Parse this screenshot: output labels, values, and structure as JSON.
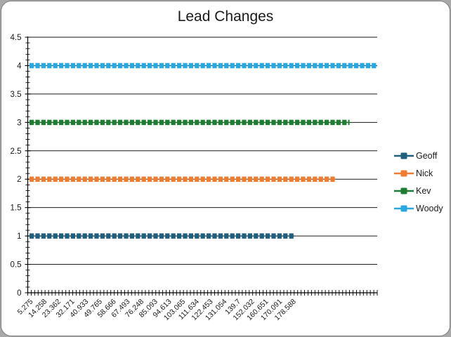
{
  "frame": {
    "page_background": "#a9a9a9",
    "chart_background": "#ffffff",
    "border_color": "#7f7f7f",
    "gridline_color": "#1a1a1a",
    "axis_color": "#000000",
    "text_color": "#1a1a1a"
  },
  "chart_data": {
    "type": "line",
    "title": "Lead Changes",
    "grid": true,
    "legend_position": "right",
    "y_axis": {
      "min": 0,
      "max": 4.5,
      "major_interval": 0.5,
      "minor_interval": 0.1,
      "tick_labels": [
        "0",
        "0.5",
        "1",
        "1.5",
        "2",
        "2.5",
        "3",
        "3.5",
        "4",
        "4.5"
      ]
    },
    "x_axis": {
      "tick_labels": [
        "5.275",
        "14.258",
        "23.362",
        "32.171",
        "40.933",
        "49.765",
        "58.666",
        "67.493",
        "76.248",
        "85.093",
        "94.613",
        "103.065",
        "111.634",
        "122.453",
        "131.054",
        "139.7",
        "152.032",
        "160.651",
        "170.091",
        "178.588"
      ],
      "minor_tick_count": 102,
      "label_every_n_ticks": 4,
      "first_label_tick_index": 1,
      "label_rotation_deg": -45
    },
    "series": [
      {
        "name": "Geoff",
        "color": "#205E7E",
        "value": 1,
        "end_tick_index": 77
      },
      {
        "name": "Nick",
        "color": "#ED7D31",
        "value": 2,
        "end_tick_index": 89
      },
      {
        "name": "Kev",
        "color": "#1E7D33",
        "value": 3,
        "end_tick_index": 93
      },
      {
        "name": "Woody",
        "color": "#29A8DF",
        "value": 4,
        "end_tick_index": 101
      }
    ]
  }
}
